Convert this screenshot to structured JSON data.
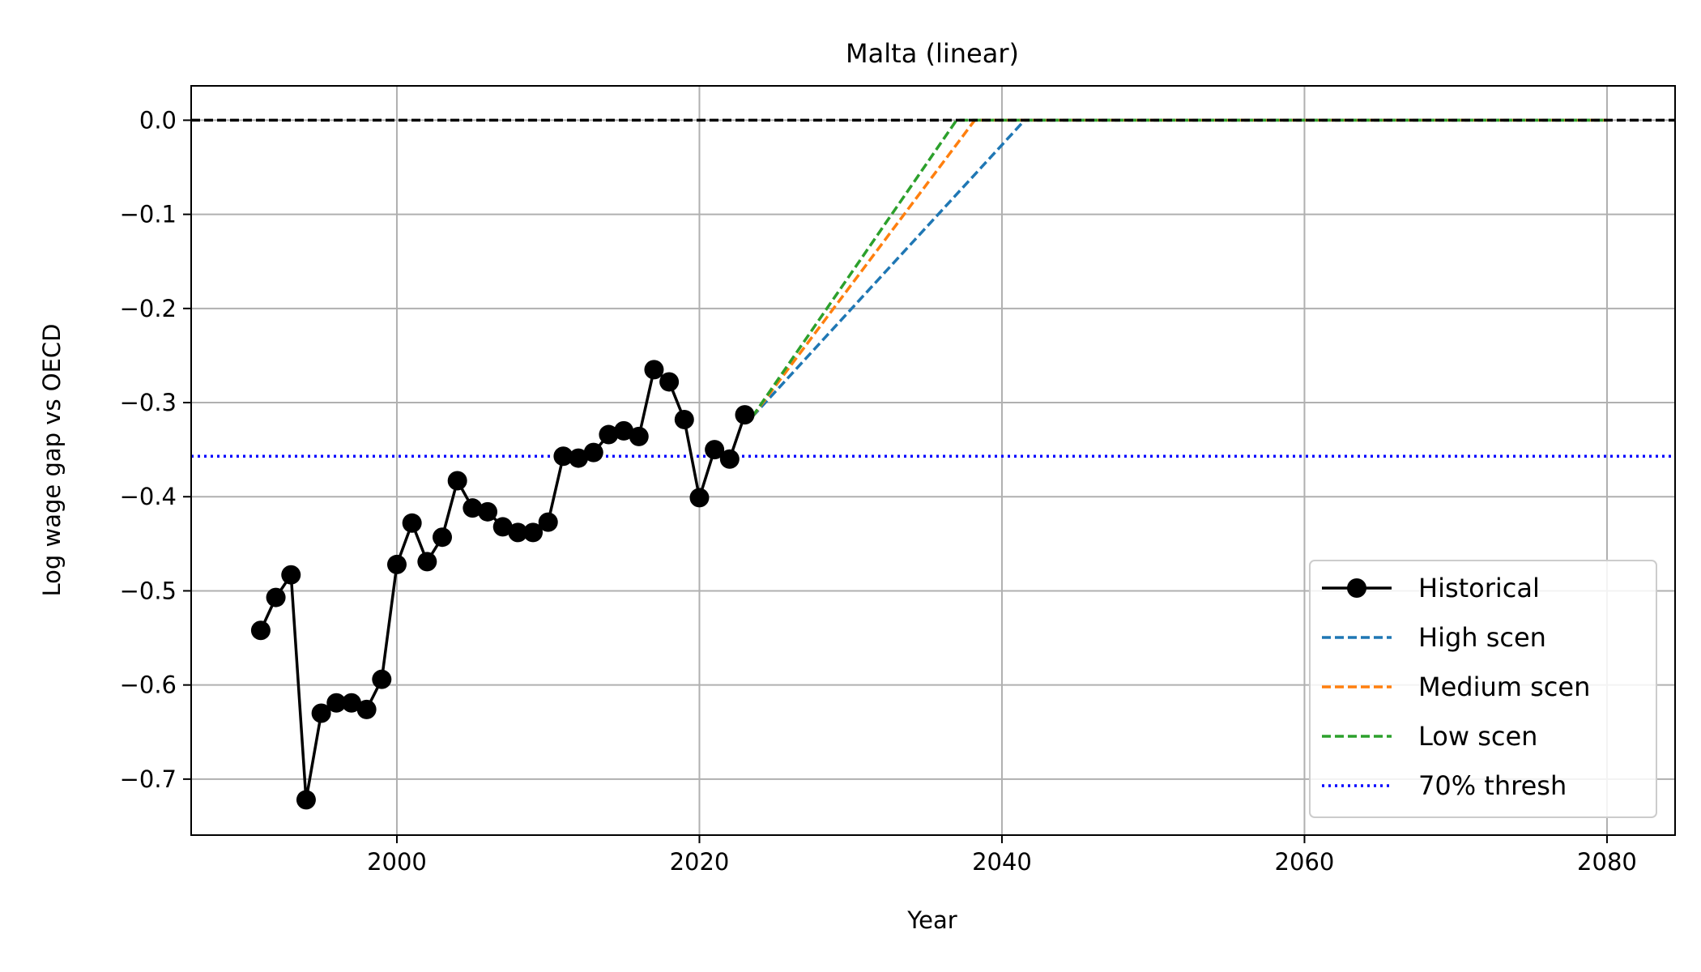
{
  "chart_data": {
    "type": "line",
    "title": "Malta (linear)",
    "xlabel": "Year",
    "ylabel": "Log wage gap vs OECD",
    "xlim": [
      1986.4,
      2084.5
    ],
    "ylim": [
      -0.7595,
      0.0365
    ],
    "xticks": [
      2000,
      2020,
      2040,
      2060,
      2080
    ],
    "xtick_labels": [
      "2000",
      "2020",
      "2040",
      "2060",
      "2080"
    ],
    "yticks": [
      0.0,
      -0.1,
      -0.2,
      -0.3,
      -0.4,
      -0.5,
      -0.6,
      -0.7
    ],
    "ytick_labels": [
      "0.0",
      "−0.1",
      "−0.2",
      "−0.3",
      "−0.4",
      "−0.5",
      "−0.6",
      "−0.7"
    ],
    "grid": true,
    "legend_position": "lower-right",
    "series": [
      {
        "name": "Historical",
        "color": "#000000",
        "style": "solid",
        "marker": "circle",
        "x": [
          1991,
          1992,
          1993,
          1994,
          1995,
          1996,
          1997,
          1998,
          1999,
          2000,
          2001,
          2002,
          2003,
          2004,
          2005,
          2006,
          2007,
          2008,
          2009,
          2010,
          2011,
          2012,
          2013,
          2014,
          2015,
          2016,
          2017,
          2018,
          2019,
          2020,
          2021,
          2022,
          2023
        ],
        "y": [
          -0.542,
          -0.507,
          -0.483,
          -0.722,
          -0.63,
          -0.619,
          -0.619,
          -0.626,
          -0.594,
          -0.472,
          -0.428,
          -0.469,
          -0.443,
          -0.383,
          -0.412,
          -0.416,
          -0.432,
          -0.438,
          -0.438,
          -0.427,
          -0.357,
          -0.359,
          -0.353,
          -0.334,
          -0.33,
          -0.336,
          -0.265,
          -0.278,
          -0.318,
          -0.401,
          -0.35,
          -0.36,
          -0.313
        ]
      },
      {
        "name": "High scen",
        "color": "#1f77b4",
        "style": "dashed",
        "x": [
          2023.5,
          2041.5,
          2080
        ],
        "y": [
          -0.315,
          0.0,
          0.0
        ]
      },
      {
        "name": "Medium scen",
        "color": "#ff7f0e",
        "style": "dashed",
        "x": [
          2023.5,
          2038.2,
          2080
        ],
        "y": [
          -0.315,
          0.0,
          0.0
        ]
      },
      {
        "name": "Low scen",
        "color": "#2ca02c",
        "style": "dashed",
        "x": [
          2023.5,
          2037.0,
          2080
        ],
        "y": [
          -0.315,
          0.0,
          0.0
        ]
      },
      {
        "name": "70% thresh",
        "color": "#0000ff",
        "style": "dotted",
        "x": [
          1986.4,
          2084.5
        ],
        "y": [
          -0.357,
          -0.357
        ]
      }
    ],
    "reference_line": {
      "y": 0.0,
      "color": "#000000",
      "style": "dashed"
    }
  }
}
